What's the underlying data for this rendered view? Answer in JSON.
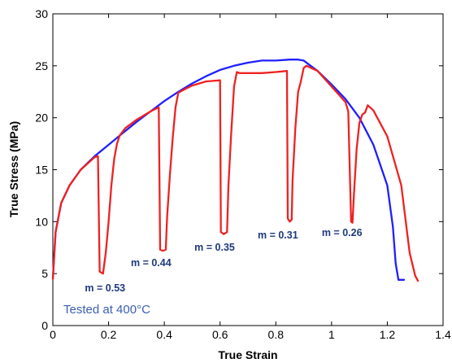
{
  "chart_data": {
    "type": "line",
    "xlabel": "True Strain",
    "ylabel": "True Stress (MPa)",
    "xlim": [
      0,
      1.4
    ],
    "ylim": [
      0,
      30
    ],
    "xticks": [
      "0",
      "0.2",
      "0.4",
      "0.6",
      "0.8",
      "1",
      "1.2",
      "1.4"
    ],
    "yticks": [
      "0",
      "5",
      "10",
      "15",
      "20",
      "25",
      "30"
    ],
    "grid": false,
    "colors": {
      "constant_rate": "#1f1fff",
      "rate_jump": "#ee2222",
      "annotation": "#1f3a7a",
      "note": "#3a5fb0"
    },
    "annotation_text": "Tested at 400°C",
    "series": [
      {
        "key": "constant_rate",
        "x": [
          0,
          0.01,
          0.03,
          0.06,
          0.1,
          0.15,
          0.2,
          0.25,
          0.3,
          0.35,
          0.4,
          0.45,
          0.5,
          0.55,
          0.6,
          0.65,
          0.7,
          0.75,
          0.8,
          0.85,
          0.88,
          0.9,
          0.92,
          0.95,
          1.0,
          1.05,
          1.1,
          1.15,
          1.2,
          1.22,
          1.23,
          1.24,
          1.26
        ],
        "y": [
          4.5,
          9,
          11.8,
          13.5,
          15.0,
          16.3,
          17.4,
          18.5,
          19.6,
          20.6,
          21.6,
          22.5,
          23.3,
          24.0,
          24.6,
          25.0,
          25.3,
          25.5,
          25.5,
          25.6,
          25.6,
          25.5,
          25.1,
          24.5,
          23.2,
          21.8,
          20.0,
          17.4,
          13.5,
          9.5,
          6.0,
          4.4,
          4.4
        ]
      },
      {
        "key": "rate_jump",
        "x": [
          0,
          0.01,
          0.03,
          0.06,
          0.1,
          0.15,
          0.162,
          0.168,
          0.18,
          0.19,
          0.2,
          0.21,
          0.22,
          0.23,
          0.24,
          0.26,
          0.3,
          0.35,
          0.38,
          0.385,
          0.395,
          0.405,
          0.41,
          0.42,
          0.43,
          0.44,
          0.45,
          0.47,
          0.5,
          0.55,
          0.6,
          0.603,
          0.613,
          0.625,
          0.63,
          0.64,
          0.65,
          0.66,
          0.67,
          0.7,
          0.75,
          0.8,
          0.84,
          0.843,
          0.85,
          0.857,
          0.86,
          0.87,
          0.88,
          0.89,
          0.9,
          0.91,
          0.95,
          1.0,
          1.05,
          1.06,
          1.07,
          1.075,
          1.08,
          1.09,
          1.1,
          1.11,
          1.12,
          1.13,
          1.15,
          1.2,
          1.25,
          1.28,
          1.3,
          1.31
        ],
        "y": [
          4.5,
          9,
          11.8,
          13.5,
          15.0,
          16.2,
          16.3,
          5.2,
          5.0,
          7.0,
          10.0,
          13.5,
          16.0,
          17.5,
          18.3,
          19.0,
          19.8,
          20.6,
          21.0,
          7.3,
          7.2,
          7.3,
          10.5,
          14.5,
          18.0,
          21.0,
          22.4,
          22.7,
          23.1,
          23.5,
          23.6,
          9.0,
          8.8,
          9.0,
          13.5,
          18.5,
          23.0,
          24.4,
          24.3,
          24.3,
          24.3,
          24.4,
          24.5,
          10.3,
          10.0,
          10.2,
          14.0,
          19.0,
          22.5,
          23.5,
          24.8,
          25.0,
          24.5,
          23.0,
          21.5,
          20.6,
          10.0,
          9.9,
          12.5,
          17.0,
          19.5,
          20.3,
          20.5,
          21.2,
          20.7,
          18.2,
          13.5,
          7.0,
          4.8,
          4.3
        ]
      }
    ],
    "m_annotations": [
      {
        "label": "m = 0.53",
        "x": 0.115,
        "y": 3.3
      },
      {
        "label": "m = 0.44",
        "x": 0.28,
        "y": 5.7
      },
      {
        "label": "m = 0.35",
        "x": 0.508,
        "y": 7.2
      },
      {
        "label": "m = 0.31",
        "x": 0.735,
        "y": 8.4
      },
      {
        "label": "m = 0.26",
        "x": 0.965,
        "y": 8.6
      }
    ]
  }
}
